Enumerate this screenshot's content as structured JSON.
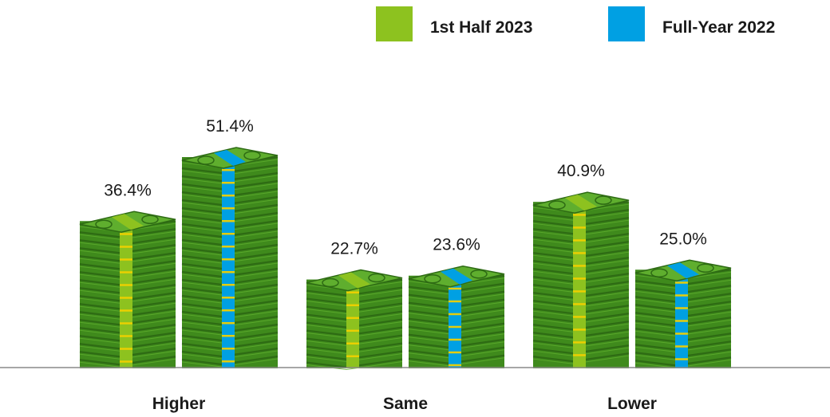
{
  "chart_data": {
    "type": "bar",
    "categories": [
      "Higher",
      "Same",
      "Lower"
    ],
    "series": [
      {
        "name": "1st Half 2023",
        "values": [
          36.4,
          22.7,
          40.9
        ],
        "color": "#8dc21f"
      },
      {
        "name": "Full-Year 2022",
        "values": [
          51.4,
          23.6,
          25.0
        ],
        "color": "#00a0e3"
      }
    ],
    "value_labels": [
      [
        "36.4%",
        "22.7%",
        "40.9%"
      ],
      [
        "51.4%",
        "23.6%",
        "25.0%"
      ]
    ],
    "title": "",
    "xlabel": "",
    "ylabel": "",
    "legend_position": "top-right",
    "grid": false,
    "mark_style": "stacks-of-banknotes"
  },
  "colors": {
    "bill_dark": "#2e6b14",
    "bill_mid": "#3f8a1c",
    "bill_light": "#5fae2e",
    "gold": "#f0d000"
  }
}
